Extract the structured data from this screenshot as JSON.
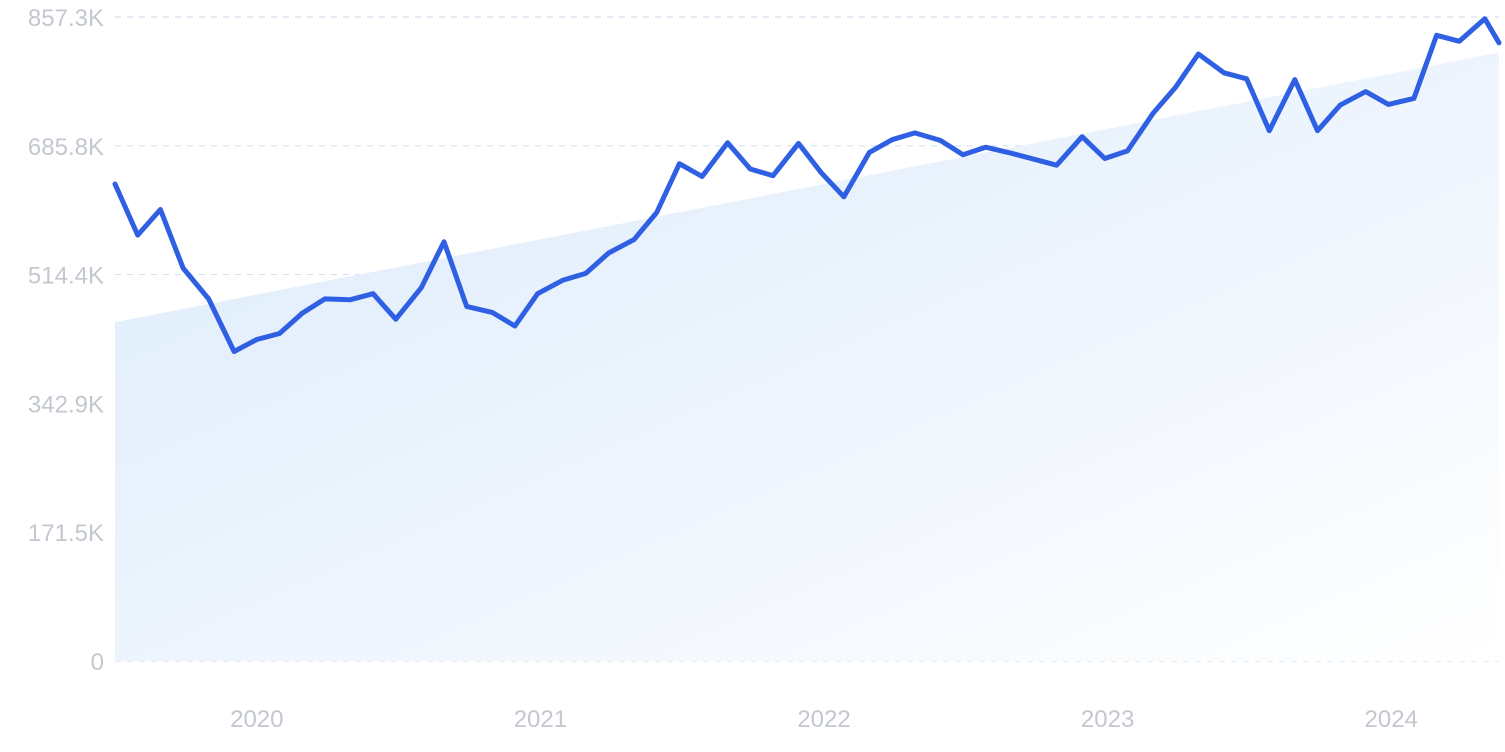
{
  "chart_data": {
    "type": "line",
    "title": "",
    "xlabel": "",
    "ylabel": "",
    "y_ticks": [
      "0",
      "171.5K",
      "342.9K",
      "514.4K",
      "685.8K",
      "857.3K"
    ],
    "y_tick_values": [
      0,
      171500,
      342900,
      514400,
      685800,
      857300
    ],
    "ylim": [
      0,
      857300
    ],
    "x_ticks": [
      "2020",
      "2021",
      "2022",
      "2023",
      "2024"
    ],
    "x_tick_values": [
      2020.25,
      2021.25,
      2022.25,
      2023.25,
      2024.25
    ],
    "xlim": [
      2019.75,
      2024.63
    ],
    "grid": true,
    "legend": "none",
    "colors": {
      "line": "#2f5fe3",
      "area_start": "#dbeafb",
      "area_end": "#ffffff",
      "grid": "#d3e2f0",
      "labels": "#c3c7cf"
    },
    "trend_area": {
      "x": [
        2019.75,
        2024.63
      ],
      "y": [
        451000,
        810000
      ]
    },
    "series": [
      {
        "x": [
          2019.75,
          2019.83,
          2019.91,
          2019.99,
          2020.08,
          2020.17,
          2020.25,
          2020.33,
          2020.41,
          2020.49,
          2020.58,
          2020.66,
          2020.74,
          2020.83,
          2020.91,
          2020.99,
          2021.08,
          2021.16,
          2021.24,
          2021.33,
          2021.41,
          2021.49,
          2021.58,
          2021.66,
          2021.74,
          2021.82,
          2021.91,
          2021.99,
          2022.07,
          2022.16,
          2022.24,
          2022.32,
          2022.41,
          2022.49,
          2022.57,
          2022.66,
          2022.74,
          2022.82,
          2022.91,
          2022.99,
          2023.07,
          2023.16,
          2023.24,
          2023.32,
          2023.41,
          2023.49,
          2023.57,
          2023.66,
          2023.74,
          2023.82,
          2023.91,
          2023.99,
          2024.07,
          2024.16,
          2024.24,
          2024.33,
          2024.41,
          2024.49,
          2024.58,
          2024.63
        ],
        "values": [
          635000,
          567000,
          601000,
          523000,
          482000,
          412000,
          428000,
          436000,
          463000,
          482000,
          481000,
          489000,
          455000,
          497000,
          558000,
          472000,
          464000,
          446000,
          489000,
          507000,
          516000,
          543000,
          561000,
          597000,
          662000,
          645000,
          690000,
          655000,
          646000,
          689000,
          650000,
          618000,
          677000,
          694000,
          703000,
          693000,
          674000,
          684000,
          676000,
          668000,
          660000,
          698000,
          669000,
          679000,
          729000,
          764000,
          808000,
          783000,
          775000,
          706000,
          774000,
          706000,
          740000,
          758000,
          741000,
          749000,
          833000,
          825000,
          855000,
          823000
        ]
      }
    ]
  }
}
